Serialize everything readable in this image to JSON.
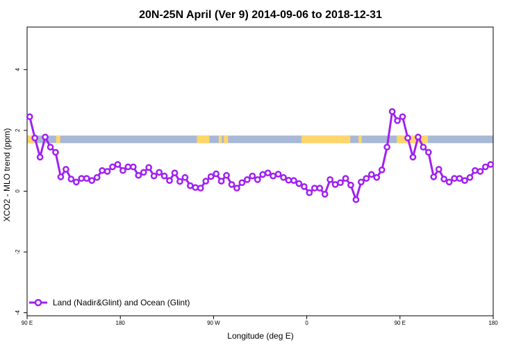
{
  "chart_data": {
    "type": "line",
    "title": "20N-25N April (Ver 9)   2014-09-06 to 2018-12-31",
    "xlabel": "Longitude (deg E)",
    "ylabel": "XCO2 - MLO trend (ppm)",
    "x_tick_labels": [
      "90 E",
      "180",
      "90 W",
      "0",
      "90 E",
      "180"
    ],
    "x_ticks_deg": [
      90,
      180,
      270,
      360,
      450,
      540
    ],
    "xlim": [
      90,
      540
    ],
    "ylim": [
      -4.1,
      5.4
    ],
    "y_ticks": [
      -4,
      -2,
      0,
      2,
      4
    ],
    "grid": false,
    "legend_position": "bottom-left",
    "land_ocean_band": {
      "y_range": [
        1.58,
        1.83
      ],
      "ocean_color": "#a7b9d6",
      "land_color": "#ffd66b",
      "land_segments_deg": [
        [
          90,
          97
        ],
        [
          118,
          122
        ],
        [
          254,
          266
        ],
        [
          275,
          278
        ],
        [
          280,
          284
        ],
        [
          355,
          402
        ],
        [
          410,
          413
        ],
        [
          447,
          477
        ]
      ]
    },
    "series": [
      {
        "name": "Land (Nadir&Glint) and Ocean (Glint)",
        "color": "#a020f0",
        "x": [
          92.5,
          97.5,
          102.5,
          107.5,
          112.5,
          117.5,
          122.5,
          127.5,
          132.5,
          137.5,
          142.5,
          147.5,
          152.5,
          157.5,
          162.5,
          167.5,
          172.5,
          177.5,
          182.5,
          187.5,
          192.5,
          197.5,
          202.5,
          207.5,
          212.5,
          217.5,
          222.5,
          227.5,
          232.5,
          237.5,
          242.5,
          247.5,
          252.5,
          257.5,
          262.5,
          267.5,
          272.5,
          277.5,
          282.5,
          287.5,
          292.5,
          297.5,
          302.5,
          307.5,
          312.5,
          317.5,
          322.5,
          327.5,
          332.5,
          337.5,
          342.5,
          347.5,
          352.5,
          357.5,
          362.5,
          367.5,
          372.5,
          377.5,
          382.5,
          387.5,
          392.5,
          397.5,
          402.5,
          407.5,
          412.5,
          417.5,
          422.5,
          427.5,
          432.5,
          437.5,
          442.5,
          447.5,
          452.5,
          457.5,
          462.5,
          467.5,
          472.5,
          477.5,
          482.5,
          487.5,
          492.5,
          497.5,
          502.5,
          507.5,
          512.5,
          517.5,
          522.5,
          527.5,
          532.5,
          537.5
        ],
        "y": [
          2.45,
          1.75,
          1.12,
          1.78,
          1.45,
          1.28,
          0.47,
          0.72,
          0.4,
          0.3,
          0.42,
          0.42,
          0.35,
          0.45,
          0.68,
          0.65,
          0.8,
          0.88,
          0.68,
          0.8,
          0.8,
          0.52,
          0.62,
          0.78,
          0.5,
          0.62,
          0.5,
          0.35,
          0.6,
          0.32,
          0.45,
          0.18,
          0.12,
          0.1,
          0.33,
          0.48,
          0.57,
          0.33,
          0.52,
          0.22,
          0.1,
          0.28,
          0.38,
          0.5,
          0.38,
          0.55,
          0.6,
          0.5,
          0.56,
          0.45,
          0.36,
          0.35,
          0.25,
          0.15,
          -0.05,
          0.1,
          0.1,
          -0.1,
          0.38,
          0.22,
          0.28,
          0.42,
          0.2,
          -0.28,
          0.3,
          0.42,
          0.55,
          0.45,
          0.7,
          1.45,
          2.62,
          2.32,
          2.45,
          1.75,
          1.12,
          1.78,
          1.45,
          1.28,
          0.47,
          0.72,
          0.4,
          0.3,
          0.42,
          0.42,
          0.35,
          0.45,
          0.68,
          0.65,
          0.8,
          0.88
        ]
      }
    ]
  }
}
